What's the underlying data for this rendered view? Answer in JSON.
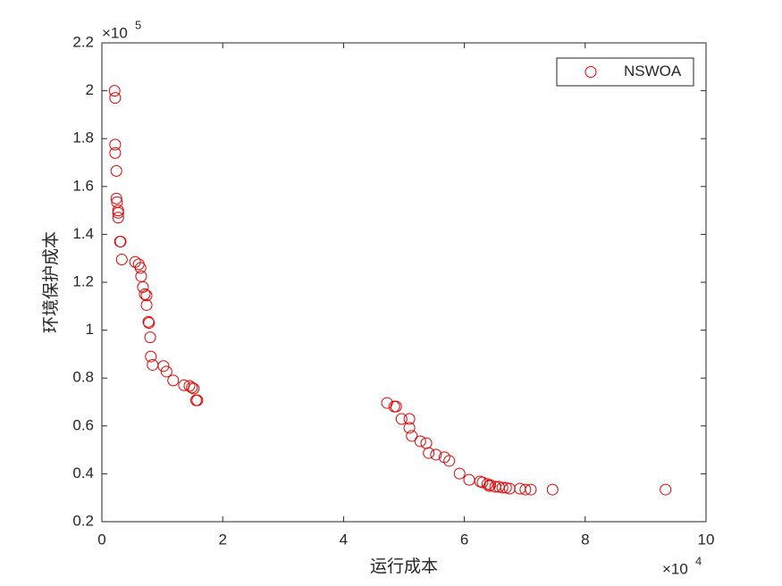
{
  "chart_data": {
    "type": "scatter",
    "x_label": "运行成本",
    "y_label": "环境保护成本",
    "x_multiplier": "×10",
    "x_power": "4",
    "y_multiplier": "×10",
    "y_power": "5",
    "xlim": [
      0,
      10
    ],
    "xticks": [
      0,
      2,
      4,
      6,
      8,
      10
    ],
    "ylim": [
      0.2,
      2.2
    ],
    "yticks": [
      0.2,
      0.4,
      0.6,
      0.8,
      1,
      1.2,
      1.4,
      1.6,
      1.8,
      2,
      2.2
    ],
    "legend": "upper right",
    "series": [
      {
        "name": "NSWOA",
        "color": "#e00000",
        "x": [
          0.21,
          0.22,
          0.22,
          0.22,
          0.24,
          0.24,
          0.25,
          0.27,
          0.27,
          0.27,
          0.3,
          0.31,
          0.33,
          0.55,
          0.61,
          0.64,
          0.65,
          0.68,
          0.71,
          0.74,
          0.74,
          0.77,
          0.78,
          0.8,
          0.81,
          0.84,
          1.02,
          1.07,
          1.18,
          1.36,
          1.45,
          1.49,
          1.52,
          1.56,
          1.58,
          4.72,
          4.84,
          4.87,
          4.96,
          5.09,
          5.09,
          5.13,
          5.27,
          5.37,
          5.41,
          5.53,
          5.67,
          5.75,
          5.92,
          6.08,
          6.26,
          6.3,
          6.38,
          6.41,
          6.43,
          6.51,
          6.57,
          6.63,
          6.69,
          6.75,
          6.92,
          7.01,
          7.1,
          7.46,
          9.33
        ],
        "y": [
          2.0,
          1.97,
          1.775,
          1.74,
          1.665,
          1.55,
          1.535,
          1.5,
          1.49,
          1.47,
          1.37,
          1.37,
          1.295,
          1.285,
          1.275,
          1.26,
          1.225,
          1.18,
          1.15,
          1.145,
          1.105,
          1.035,
          1.03,
          0.97,
          0.89,
          0.855,
          0.85,
          0.827,
          0.79,
          0.77,
          0.767,
          0.76,
          0.756,
          0.707,
          0.707,
          0.696,
          0.681,
          0.681,
          0.629,
          0.629,
          0.592,
          0.558,
          0.536,
          0.528,
          0.487,
          0.48,
          0.469,
          0.454,
          0.401,
          0.375,
          0.368,
          0.364,
          0.357,
          0.349,
          0.353,
          0.346,
          0.346,
          0.342,
          0.342,
          0.338,
          0.338,
          0.334,
          0.334,
          0.334,
          0.334
        ]
      }
    ]
  }
}
